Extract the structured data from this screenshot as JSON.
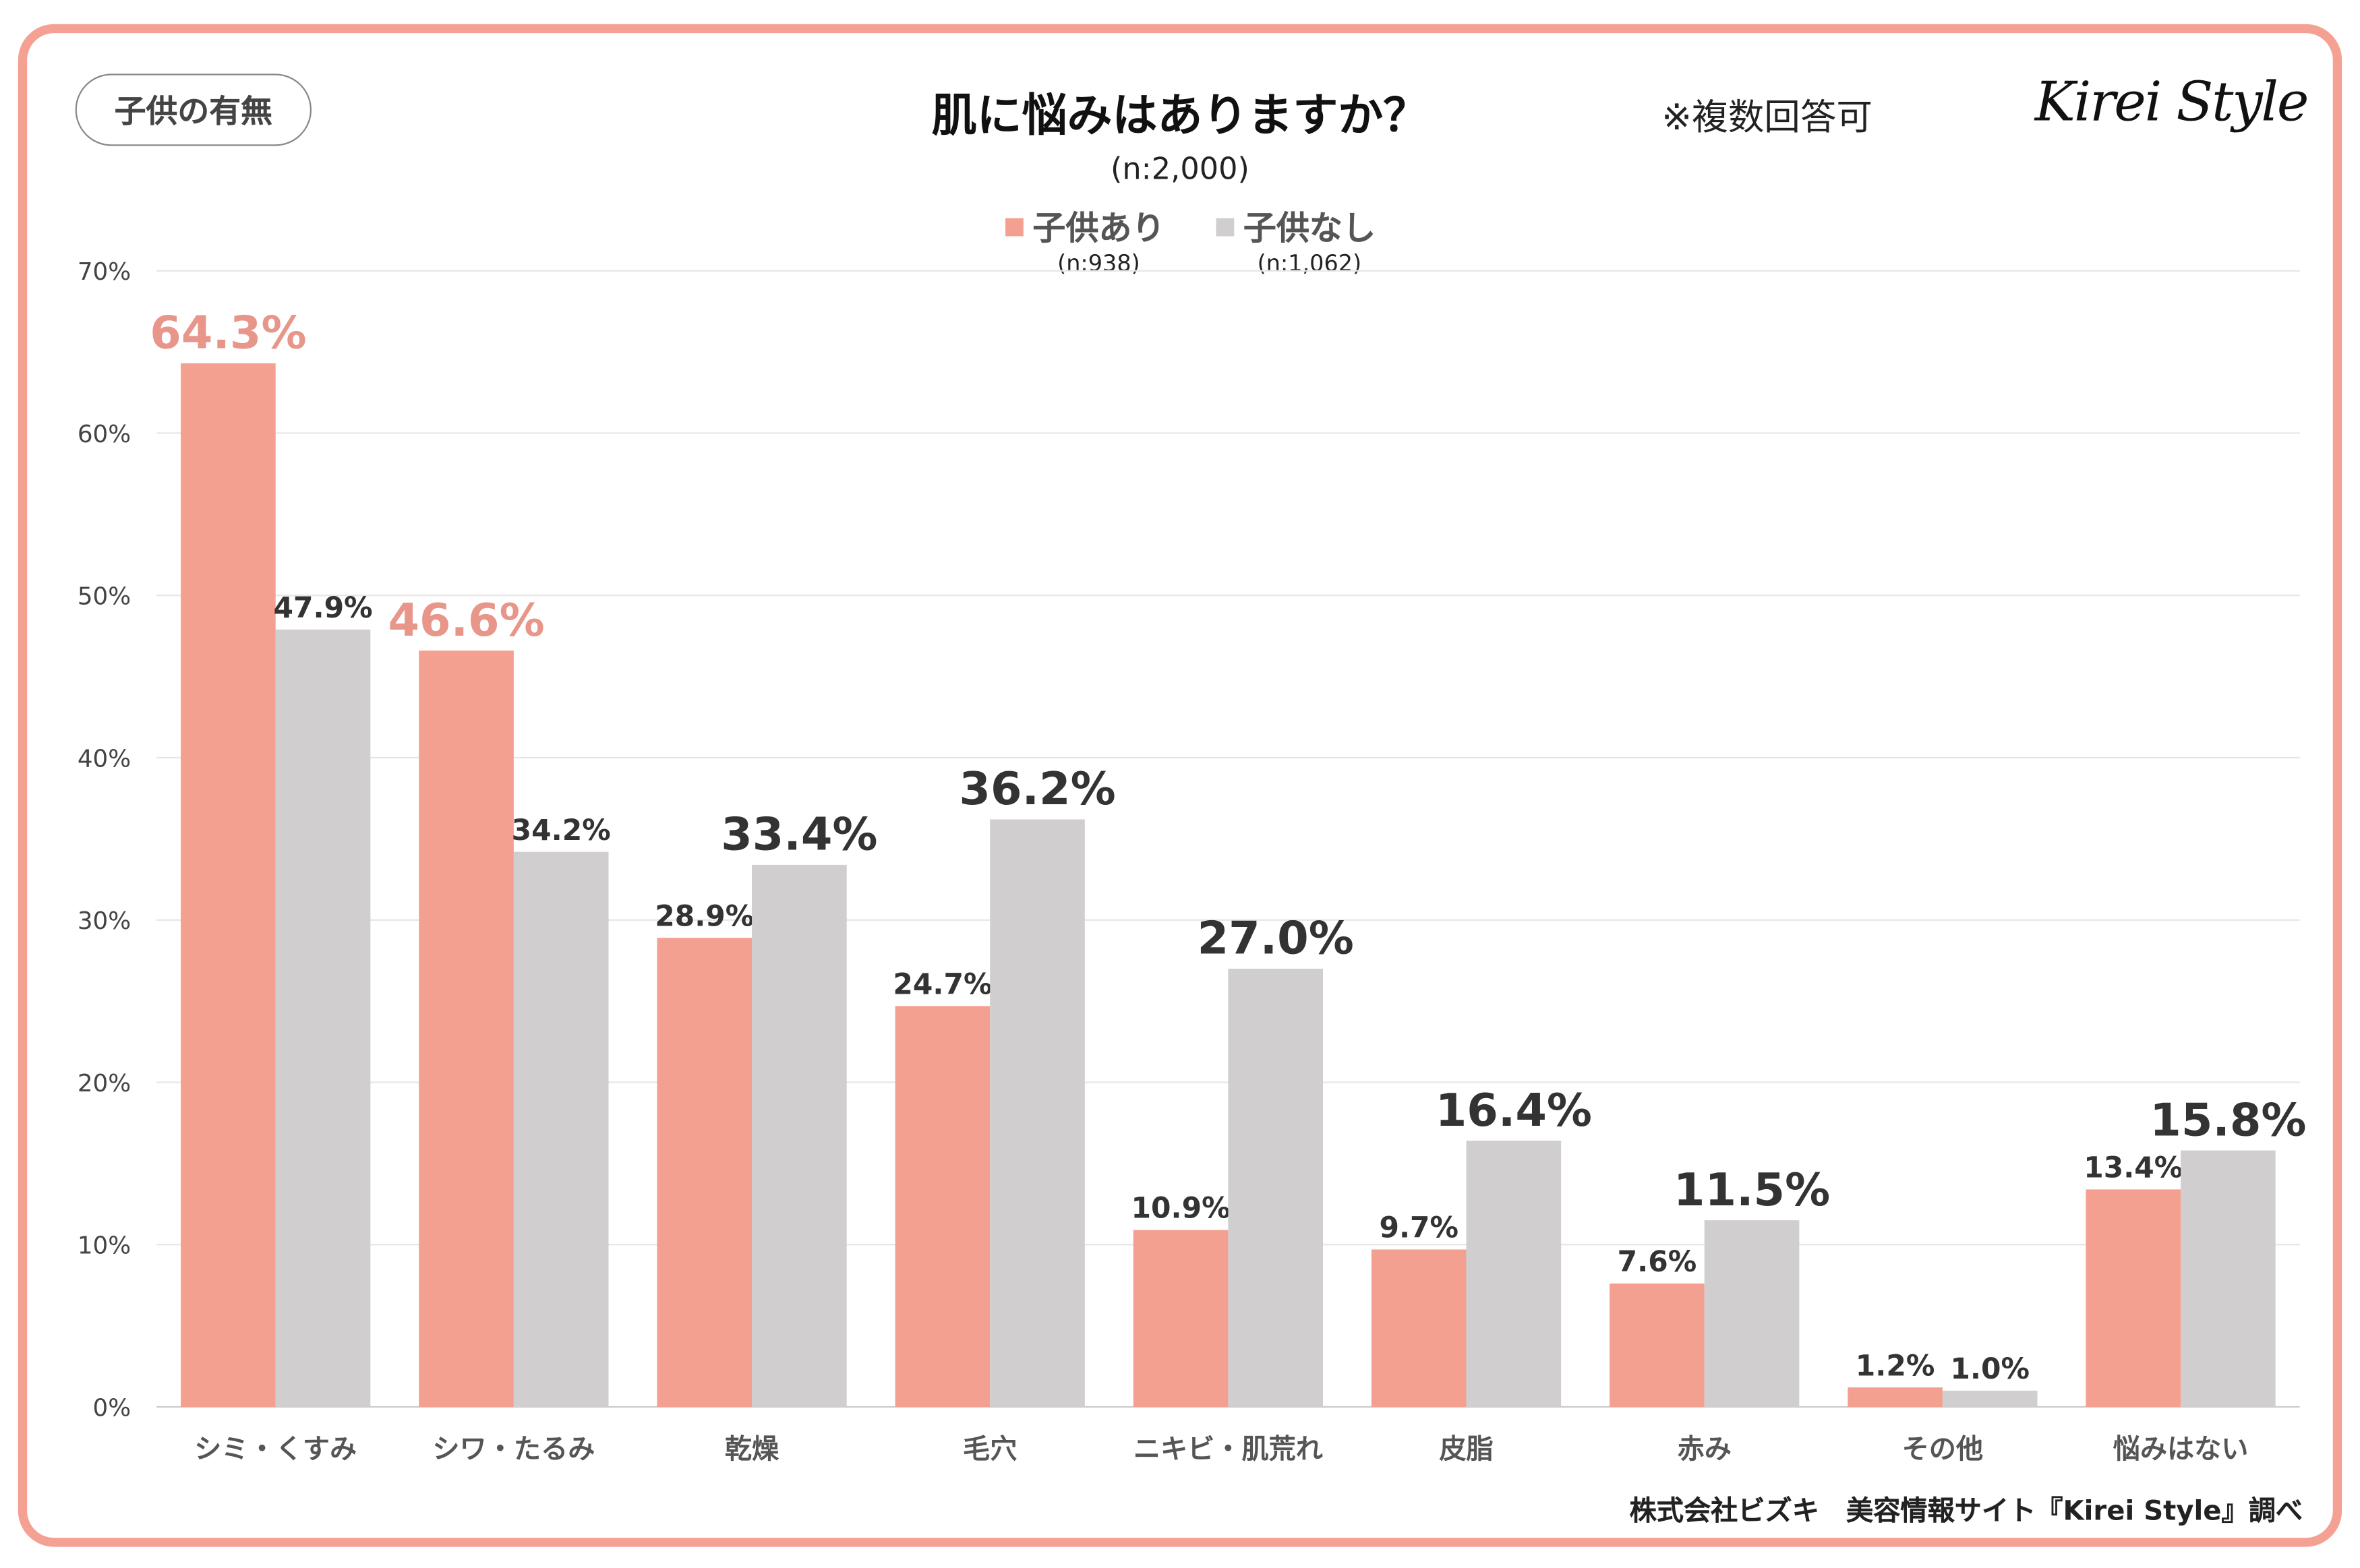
{
  "header": {
    "tag": "子供の有無",
    "title": "肌に悩みはありますか？",
    "sample": "(n:2,000)",
    "note": "※複数回答可",
    "logo": "Kirei Style"
  },
  "credit": "株式会社ビズキ　美容情報サイト『Kirei Style』調べ",
  "chart_data": {
    "type": "bar",
    "title": "肌に悩みはありますか？",
    "xlabel": "",
    "ylabel": "",
    "ylim": [
      0,
      70
    ],
    "yticks": [
      "0%",
      "10%",
      "20%",
      "30%",
      "40%",
      "50%",
      "60%",
      "70%"
    ],
    "grid": true,
    "legend_position": "top-center",
    "categories": [
      "シミ・くすみ",
      "シワ・たるみ",
      "乾燥",
      "毛穴",
      "ニキビ・肌荒れ",
      "皮脂",
      "赤み",
      "その他",
      "悩みはない"
    ],
    "series": [
      {
        "name": "子供あり",
        "n": "(n:938)",
        "color": "#f4a090",
        "label_color": "#e8958a",
        "values": [
          64.3,
          46.6,
          28.9,
          24.7,
          10.9,
          9.7,
          7.6,
          1.2,
          13.4
        ],
        "highlight": [
          true,
          true,
          false,
          false,
          false,
          false,
          false,
          false,
          false
        ]
      },
      {
        "name": "子供なし",
        "n": "(n:1,062)",
        "color": "#d0cece",
        "label_color": "#333333",
        "values": [
          47.9,
          34.2,
          33.4,
          36.2,
          27.0,
          16.4,
          11.5,
          1.0,
          15.8
        ],
        "highlight": [
          false,
          false,
          true,
          true,
          true,
          true,
          true,
          false,
          true
        ]
      }
    ]
  }
}
